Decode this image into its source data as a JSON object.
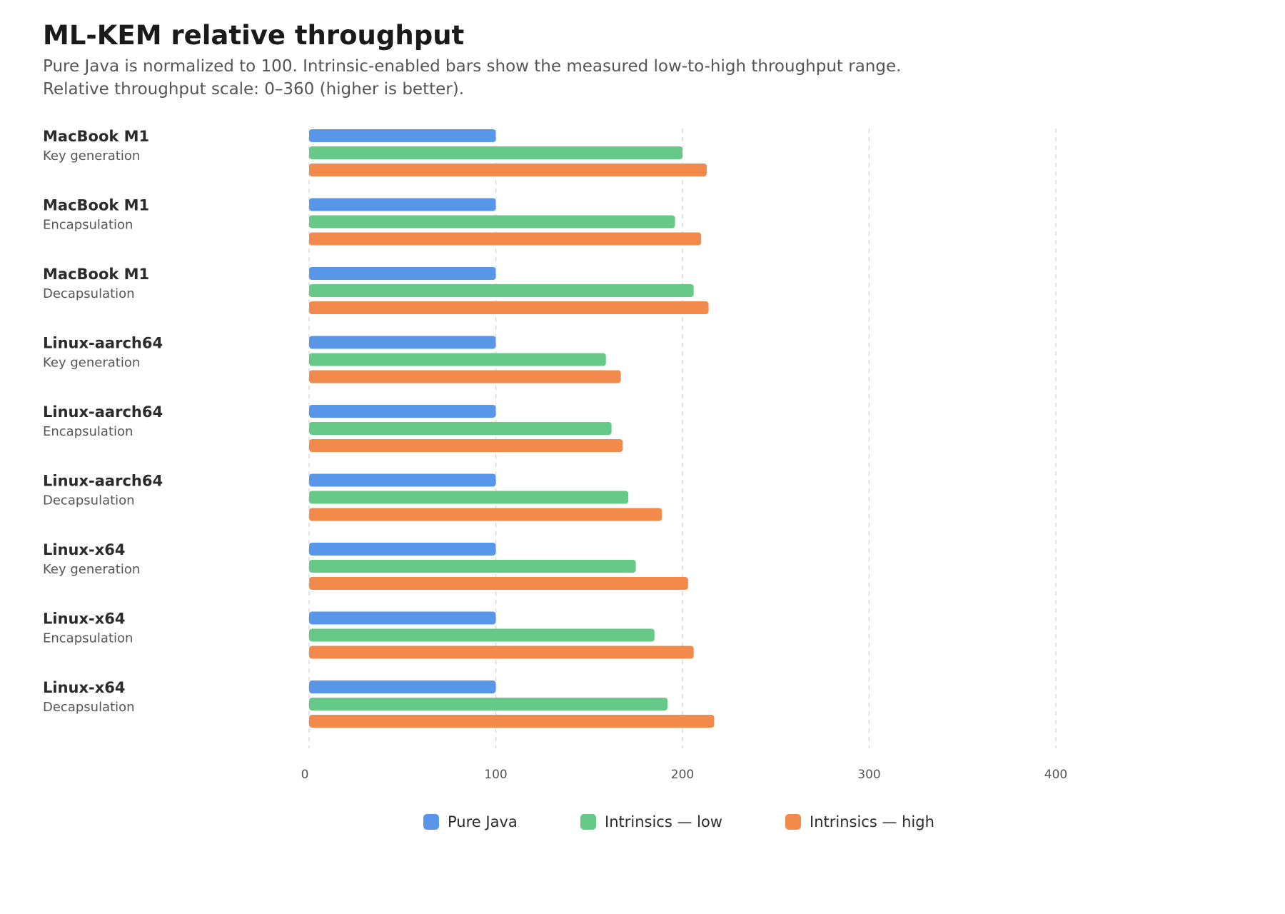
{
  "chart_data": {
    "type": "bar",
    "orientation": "horizontal",
    "title": "ML-KEM relative throughput",
    "subtitle_lines": [
      "Pure Java is normalized to 100. Intrinsic-enabled bars show the measured low-to-high throughput range.",
      "Relative throughput scale: 0–360 (higher is better)."
    ],
    "categories": [
      {
        "platform": "MacBook M1",
        "operation": "Key generation"
      },
      {
        "platform": "MacBook M1",
        "operation": "Encapsulation"
      },
      {
        "platform": "MacBook M1",
        "operation": "Decapsulation"
      },
      {
        "platform": "Linux-aarch64",
        "operation": "Key generation"
      },
      {
        "platform": "Linux-aarch64",
        "operation": "Encapsulation"
      },
      {
        "platform": "Linux-aarch64",
        "operation": "Decapsulation"
      },
      {
        "platform": "Linux-x64",
        "operation": "Key generation"
      },
      {
        "platform": "Linux-x64",
        "operation": "Encapsulation"
      },
      {
        "platform": "Linux-x64",
        "operation": "Decapsulation"
      }
    ],
    "series": [
      {
        "name": "Pure Java",
        "color": "#5796e8",
        "values": [
          100,
          100,
          100,
          100,
          100,
          100,
          100,
          100,
          100
        ]
      },
      {
        "name": "Intrinsics — low",
        "color": "#66c987",
        "values": [
          200,
          196,
          206,
          159,
          162,
          171,
          175,
          185,
          192
        ]
      },
      {
        "name": "Intrinsics — high",
        "color": "#f28a4c",
        "values": [
          213,
          210,
          214,
          167,
          168,
          189,
          203,
          206,
          217
        ]
      }
    ],
    "xlim": [
      0,
      400
    ],
    "x_ticks": [
      "0",
      "100",
      "200",
      "300",
      "400"
    ],
    "grid": "vertical dashed",
    "legend_position": "bottom-center"
  }
}
